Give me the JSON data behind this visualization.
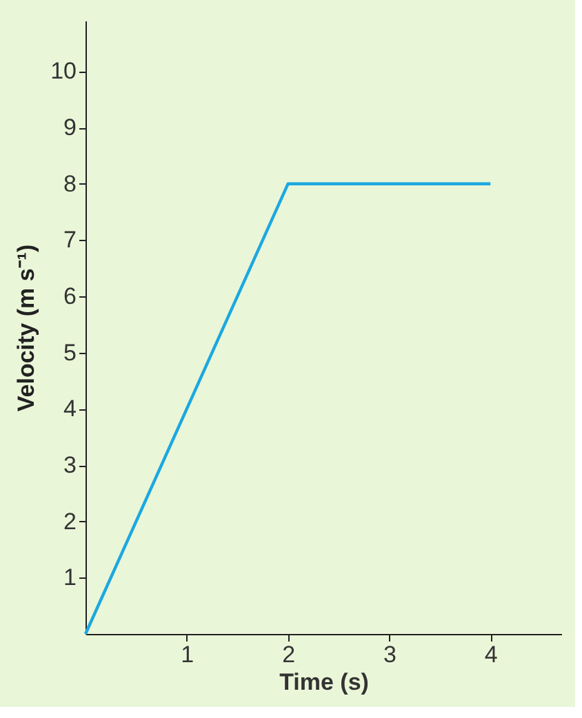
{
  "chart_data": {
    "type": "line",
    "xlabel": "Time (s)",
    "ylabel": "Velocity (m s⁻¹)",
    "x": [
      0,
      2,
      4
    ],
    "series": [
      {
        "color": "#1ba8e0",
        "values": [
          0,
          8,
          8
        ]
      }
    ],
    "xlim": [
      0,
      4.7
    ],
    "ylim": [
      0,
      10.9
    ],
    "xticks": [
      1,
      2,
      3,
      4
    ],
    "yticks": [
      1,
      2,
      3,
      4,
      5,
      6,
      7,
      8,
      9,
      10
    ],
    "grid": false,
    "legend": false,
    "marker": "none",
    "line_style": "solid"
  }
}
